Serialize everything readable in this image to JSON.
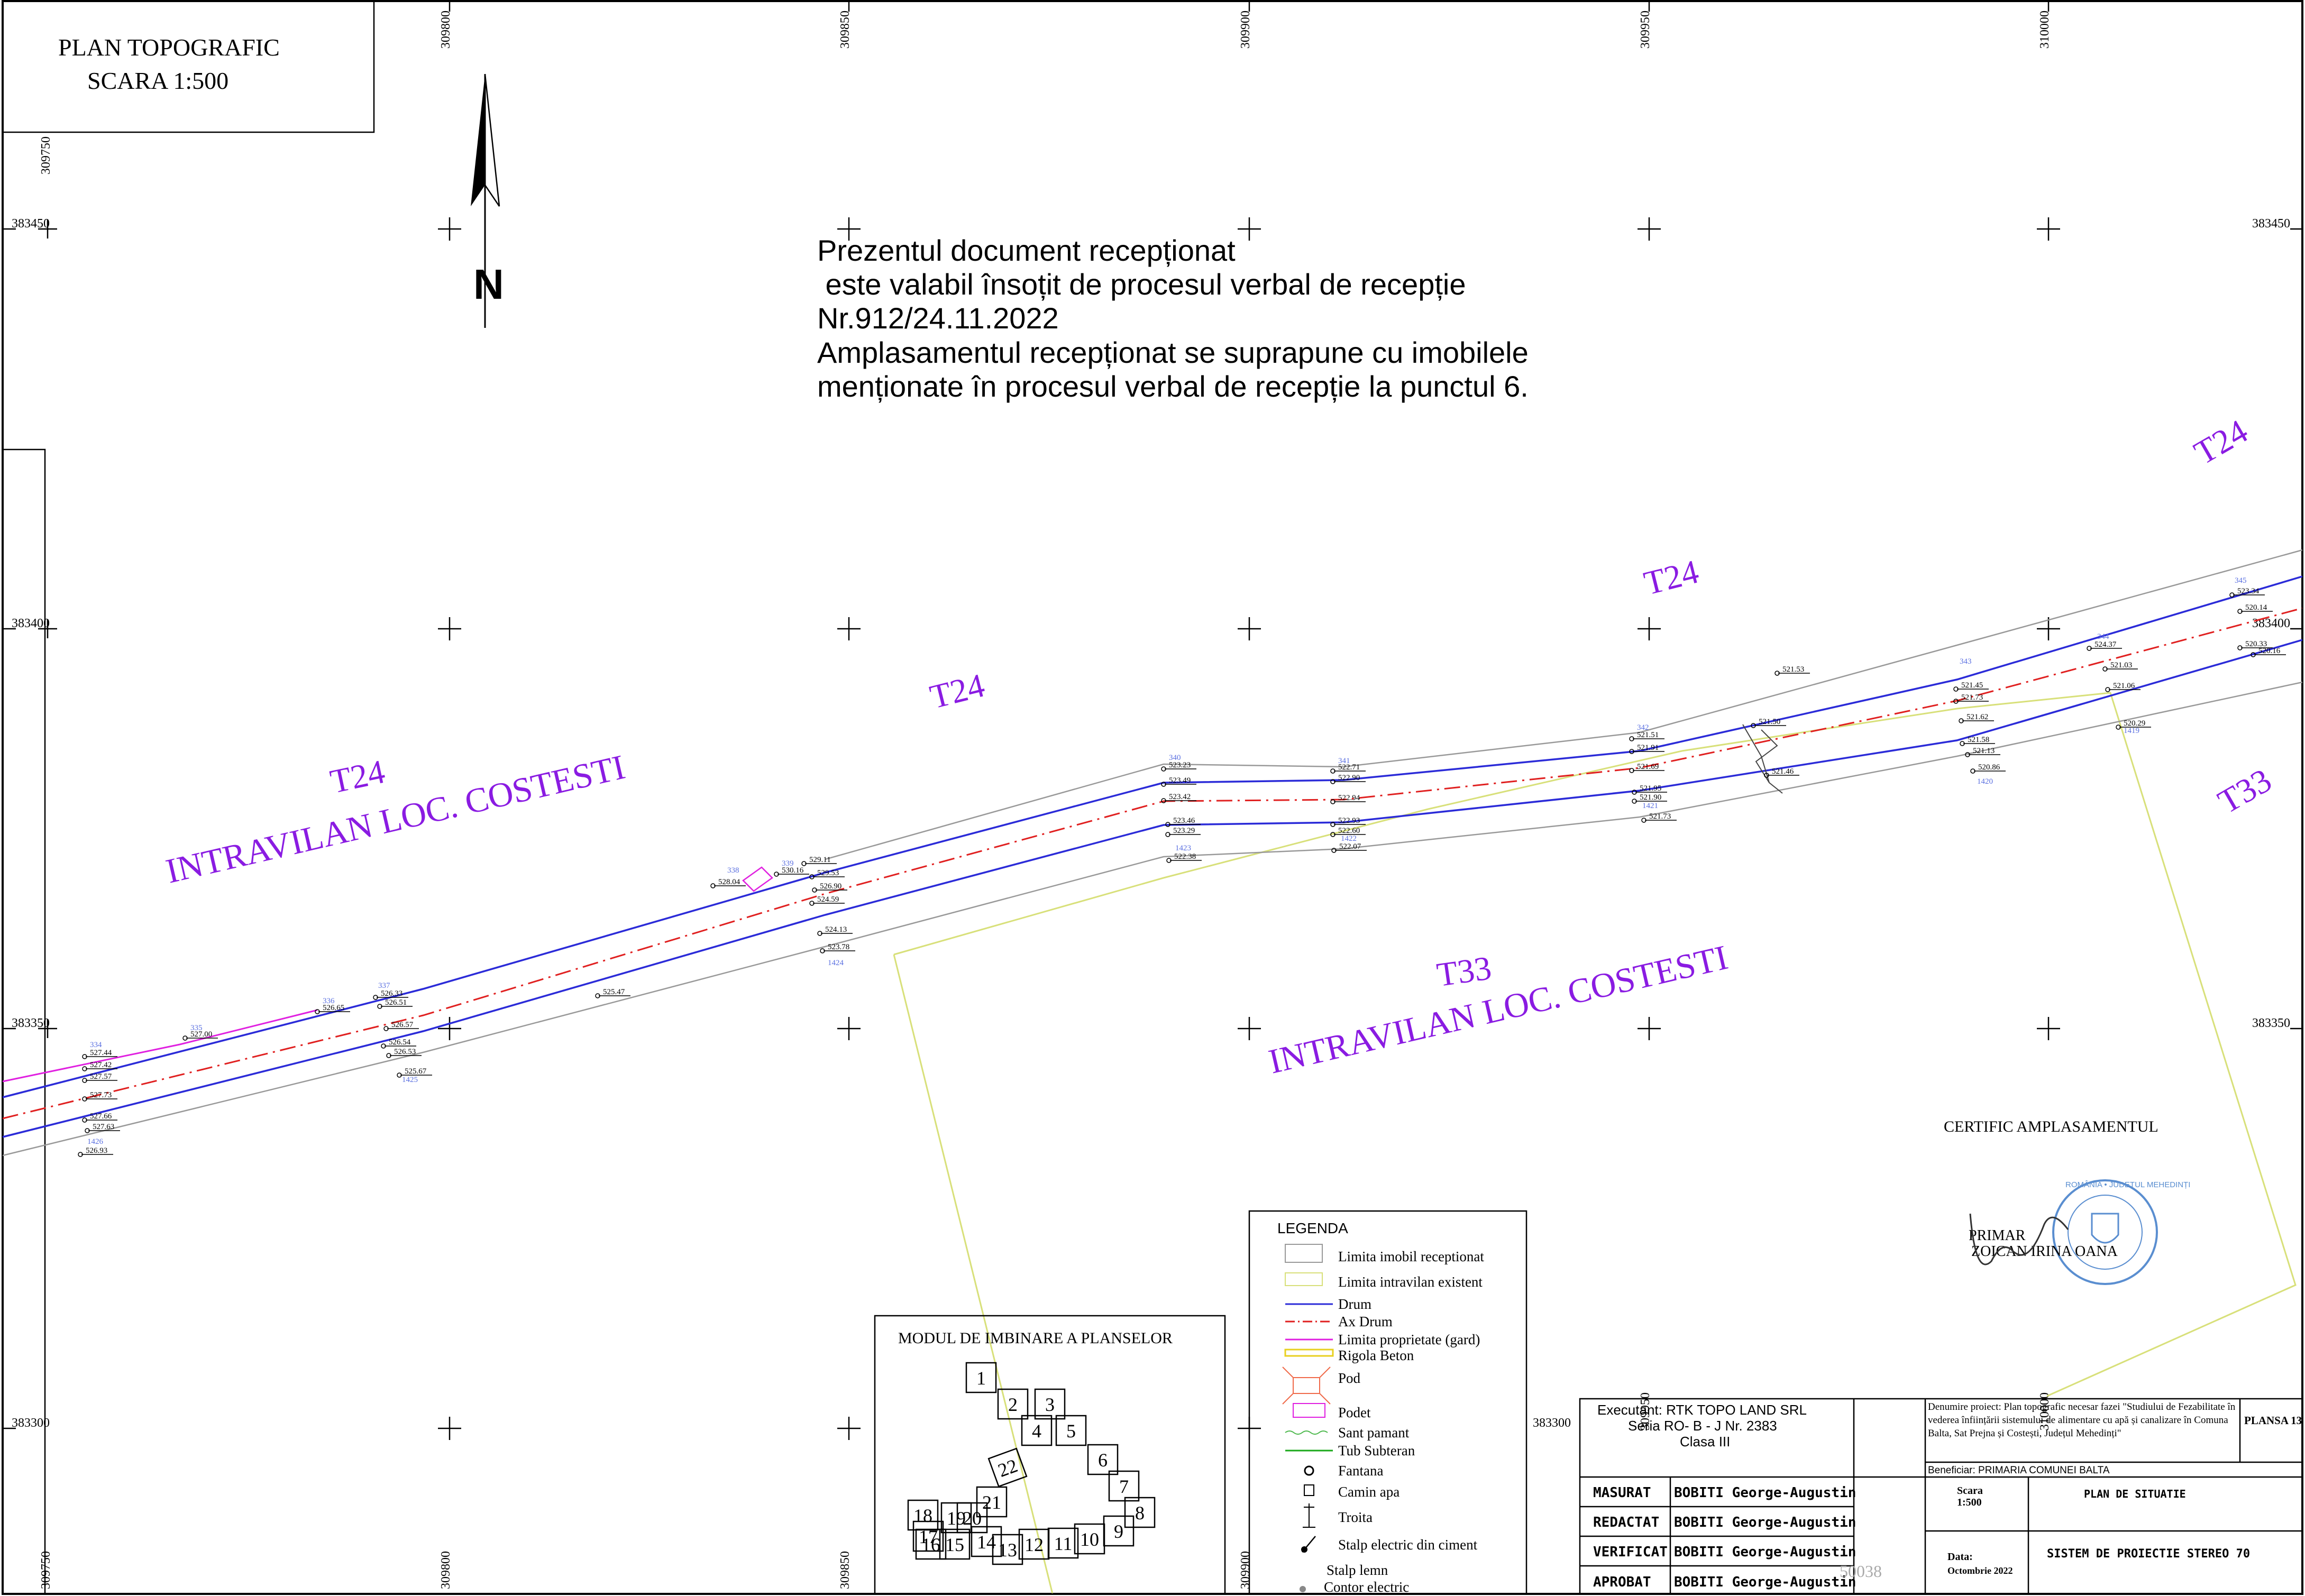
{
  "title": {
    "line1": "PLAN TOPOGRAFIC",
    "line2": "SCARA 1:500"
  },
  "north_label": "N",
  "grid": {
    "x_labels": [
      "309750",
      "309800",
      "309850",
      "309900",
      "309950",
      "310000"
    ],
    "y_labels": [
      "383450",
      "383400",
      "383350",
      "383300"
    ]
  },
  "notice": [
    "Prezentul document recepționat",
    " este valabil însoțit de procesul verbal de recepție",
    "Nr.912/24.11.2022",
    "Amplasamentul recepționat se suprapune cu imobilele",
    "menționate în procesul verbal de recepție la punctul 6."
  ],
  "zone_labels": {
    "t24": "T24",
    "t33": "T33",
    "intravilan": "INTRAVILAN LOC. COSTESTI"
  },
  "elevations": [
    "527.44",
    "527.42",
    "527.57",
    "527.73",
    "527.66",
    "527.63",
    "526.93",
    "527.00",
    "526.65",
    "526.33",
    "526.51",
    "526.57",
    "526.54",
    "526.53",
    "525.67",
    "525.47",
    "528.04",
    "530.16",
    "529.11",
    "529.53",
    "526.90",
    "524.59",
    "524.13",
    "523.78",
    "523.23",
    "523.49",
    "523.42",
    "523.46",
    "523.29",
    "522.38",
    "522.71",
    "522.90",
    "522.94",
    "522.93",
    "522.60",
    "522.07",
    "521.51",
    "521.91",
    "521.69",
    "521.95",
    "521.90",
    "521.73",
    "521.50",
    "521.46",
    "521.53",
    "521.45",
    "521.73",
    "521.62",
    "521.58",
    "521.13",
    "520.86",
    "524.37",
    "521.03",
    "521.06",
    "520.29",
    "523.34",
    "520.14",
    "520.33",
    "520.16"
  ],
  "point_ids": [
    "334",
    "335",
    "336",
    "337",
    "338",
    "339",
    "340",
    "341",
    "342",
    "343",
    "344",
    "345",
    "1423",
    "1424",
    "1425",
    "1426",
    "1420",
    "1421",
    "1422",
    "1419"
  ],
  "certific": {
    "title": "CERTIFIC AMPLASAMENTUL",
    "primar": "PRIMAR",
    "name": "ZOICAN IRINA OANA",
    "stamp_text": "ROMÂNIA • JUDEȚUL MEHEDINȚI"
  },
  "modul": {
    "title": "MODUL DE IMBINARE A PLANSELOR",
    "sheets": [
      "1",
      "2",
      "3",
      "4",
      "5",
      "6",
      "7",
      "8",
      "9",
      "10",
      "11",
      "12",
      "13",
      "14",
      "15",
      "16",
      "17",
      "18",
      "19",
      "20",
      "21",
      "22"
    ]
  },
  "legend": {
    "title": "LEGENDA",
    "items": [
      "Limita imobil receptionat",
      "Limita intravilan existent",
      "Drum",
      "Ax Drum",
      "Limita proprietate (gard)",
      "Rigola Beton",
      "Pod",
      "Podet",
      "Sant pamant",
      "Tub Subteran",
      "Fantana",
      "Camin apa",
      "Troita",
      "Stalp electric din ciment",
      "Stalp lemn",
      "Contor electric"
    ]
  },
  "title_block": {
    "executant": [
      "Executant: RTK TOPO LAND SRL",
      "Seria RO- B - J Nr. 2383",
      "Clasa III"
    ],
    "project": "Denumire proiect: Plan topografic necesar fazei \"Studiului de Fezabilitate în vederea înființării sistemului de alimentare cu apă și canalizare în Comuna Balta, Sat Prejna și Costești, Județul Mehedinți\"",
    "plansa": "PLANSA 13",
    "beneficiar": "Beneficiar: PRIMARIA COMUNEI BALTA",
    "roles": [
      {
        "role": "MASURAT",
        "name": "BOBITI George-Augustin"
      },
      {
        "role": "REDACTAT",
        "name": "BOBITI George-Augustin"
      },
      {
        "role": "VERIFICAT",
        "name": "BOBITI George-Augustin"
      },
      {
        "role": "APROBAT",
        "name": "BOBITI George-Augustin"
      }
    ],
    "scara_label": "Scara",
    "scara_value": "1:500",
    "plan_name": "PLAN DE SITUATIE",
    "data_label": "Data:",
    "data_value": "Octombrie 2022",
    "sistem": "SISTEM DE PROIECTIE STEREO 70",
    "watermark": "50038"
  },
  "colors": {
    "drum": "#2b2bd8",
    "ax_drum": "#e02020",
    "gard": "#e020e0",
    "intravilan": "#d8e07a",
    "imobil": "#999999",
    "zone_text": "#8a1be2",
    "stamp": "#5a8ed0"
  }
}
